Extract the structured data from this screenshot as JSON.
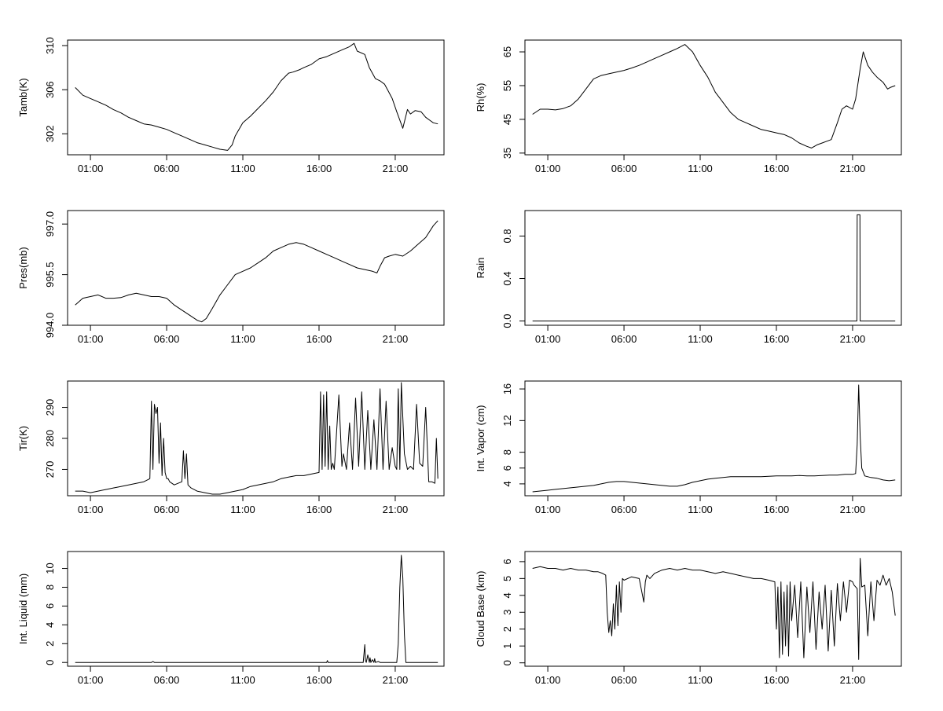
{
  "chart_data": [
    {
      "type": "line",
      "ylabel": "Tamb(K)",
      "xlabel": "",
      "x_ticks": [
        "01:00",
        "06:00",
        "11:00",
        "16:00",
        "21:00"
      ],
      "y_ticks": [
        302,
        306,
        310
      ],
      "xlim": [
        -0.5,
        24.2
      ],
      "ylim": [
        300.1,
        310.5
      ],
      "series": [
        {
          "x": [
            0,
            0.5,
            1,
            1.5,
            2,
            2.5,
            3,
            3.5,
            4,
            4.5,
            5,
            5.5,
            6,
            6.5,
            7,
            7.5,
            8,
            8.5,
            9,
            9.5,
            10,
            10.3,
            10.5,
            11,
            11.5,
            12,
            12.5,
            13,
            13.5,
            14,
            14.3,
            14.7,
            15,
            15.5,
            16,
            16.5,
            17,
            17.5,
            18,
            18.3,
            18.5,
            19,
            19.3,
            19.7,
            20,
            20.3,
            20.5,
            20.8,
            21.1,
            21.5,
            21.8,
            22,
            22.3,
            22.7,
            23,
            23.3,
            23.5,
            23.8
          ],
          "y": [
            306.2,
            305.5,
            305.2,
            304.9,
            304.6,
            304.2,
            303.9,
            303.5,
            303.2,
            302.9,
            302.8,
            302.6,
            302.4,
            302.1,
            301.8,
            301.5,
            301.2,
            301.0,
            300.8,
            300.6,
            300.5,
            301.0,
            301.8,
            303.0,
            303.6,
            304.3,
            305.0,
            305.8,
            306.8,
            307.5,
            307.6,
            307.8,
            308.0,
            308.3,
            308.8,
            309.0,
            309.3,
            309.6,
            309.9,
            310.2,
            309.5,
            309.2,
            308.0,
            307.0,
            306.8,
            306.5,
            306.0,
            305.2,
            304.0,
            302.5,
            304.2,
            303.8,
            304.1,
            304.0,
            303.5,
            303.2,
            303.0,
            302.9
          ]
        }
      ]
    },
    {
      "type": "line",
      "ylabel": "Rh(%)",
      "xlabel": "",
      "x_ticks": [
        "01:00",
        "06:00",
        "11:00",
        "16:00",
        "21:00"
      ],
      "y_ticks": [
        35,
        45,
        55,
        65
      ],
      "xlim": [
        -0.5,
        24.2
      ],
      "ylim": [
        34.5,
        68.5
      ],
      "series": [
        {
          "x": [
            0,
            0.5,
            1,
            1.5,
            2,
            2.5,
            3,
            3.5,
            4,
            4.5,
            5,
            5.5,
            6,
            6.5,
            7,
            7.5,
            8,
            8.5,
            9,
            9.5,
            10,
            10.5,
            11,
            11.5,
            12,
            12.5,
            13,
            13.5,
            14,
            14.5,
            15,
            15.5,
            16,
            16.5,
            17,
            17.5,
            18,
            18.3,
            18.7,
            19,
            19.3,
            19.6,
            20,
            20.3,
            20.6,
            21,
            21.2,
            21.5,
            21.7,
            22,
            22.3,
            22.6,
            23,
            23.3,
            23.5,
            23.8
          ],
          "y": [
            46.5,
            48,
            48,
            47.8,
            48.2,
            49,
            51,
            54,
            57,
            58,
            58.5,
            59,
            59.5,
            60.2,
            61,
            62,
            63,
            64,
            65,
            66,
            67.2,
            65,
            61,
            57.5,
            53,
            50,
            47,
            45,
            44,
            43,
            42,
            41.5,
            41,
            40.5,
            39.5,
            38,
            37,
            36.5,
            37.5,
            38,
            38.5,
            39,
            44,
            48,
            49,
            48,
            51,
            60,
            65,
            61,
            59,
            57.5,
            56,
            54,
            54.5,
            55
          ]
        }
      ]
    },
    {
      "type": "line",
      "ylabel": "Pres(mb)",
      "xlabel": "",
      "x_ticks": [
        "01:00",
        "06:00",
        "11:00",
        "16:00",
        "21:00"
      ],
      "y_ticks_values": [
        994.0,
        995.5,
        997.0
      ],
      "y_ticks": [
        "994.0",
        "995.5",
        "997.0"
      ],
      "xlim": [
        -0.5,
        24.2
      ],
      "ylim": [
        994.0,
        997.4
      ],
      "series": [
        {
          "x": [
            0,
            0.5,
            1,
            1.5,
            2,
            2.5,
            3,
            3.5,
            4,
            4.5,
            5,
            5.5,
            6,
            6.5,
            7,
            7.5,
            8,
            8.3,
            8.6,
            9,
            9.5,
            10,
            10.5,
            11,
            11.5,
            12,
            12.5,
            13,
            13.5,
            14,
            14.5,
            15,
            15.5,
            16,
            16.5,
            17,
            17.5,
            18,
            18.5,
            19,
            19.5,
            19.8,
            20,
            20.3,
            20.6,
            21,
            21.5,
            22,
            22.5,
            23,
            23.5,
            23.8
          ],
          "y": [
            994.6,
            994.8,
            994.85,
            994.9,
            994.8,
            994.8,
            994.82,
            994.9,
            994.95,
            994.9,
            994.85,
            994.85,
            994.8,
            994.6,
            994.45,
            994.3,
            994.15,
            994.1,
            994.2,
            994.5,
            994.9,
            995.2,
            995.5,
            995.6,
            995.7,
            995.85,
            996.0,
            996.2,
            996.3,
            996.4,
            996.45,
            996.4,
            996.3,
            996.2,
            996.1,
            996.0,
            995.9,
            995.8,
            995.7,
            995.65,
            995.6,
            995.55,
            995.75,
            996.0,
            996.05,
            996.1,
            996.05,
            996.2,
            996.4,
            996.6,
            996.95,
            997.1
          ]
        }
      ]
    },
    {
      "type": "line",
      "ylabel": "Rain",
      "xlabel": "",
      "x_ticks": [
        "01:00",
        "06:00",
        "11:00",
        "16:00",
        "21:00"
      ],
      "y_ticks": [
        "0.0",
        "0.4",
        "0.8"
      ],
      "y_ticks_values": [
        0.0,
        0.4,
        0.8
      ],
      "xlim": [
        -0.5,
        24.2
      ],
      "ylim": [
        -0.04,
        1.04
      ],
      "series": [
        {
          "x": [
            0,
            21.28,
            21.3,
            21.48,
            21.5,
            23.8
          ],
          "y": [
            0,
            0,
            1,
            1,
            0,
            0
          ]
        }
      ]
    },
    {
      "type": "line",
      "ylabel": "Tir(K)",
      "xlabel": "",
      "x_ticks": [
        "01:00",
        "06:00",
        "11:00",
        "16:00",
        "21:00"
      ],
      "y_ticks": [
        270,
        280,
        290
      ],
      "xlim": [
        -0.5,
        24.2
      ],
      "ylim": [
        261.5,
        298.5
      ],
      "series": [
        {
          "x": [
            0,
            0.5,
            1,
            1.5,
            2,
            2.5,
            3,
            3.5,
            4,
            4.5,
            4.9,
            5.0,
            5.1,
            5.2,
            5.3,
            5.4,
            5.5,
            5.6,
            5.7,
            5.8,
            5.9,
            6.0,
            6.1,
            6.2,
            6.5,
            7.0,
            7.1,
            7.2,
            7.3,
            7.4,
            7.6,
            8,
            8.5,
            9,
            9.5,
            10,
            10.5,
            11,
            11.5,
            12,
            12.5,
            13,
            13.5,
            14,
            14.5,
            15,
            15.5,
            16.0,
            16.1,
            16.2,
            16.3,
            16.4,
            16.5,
            16.6,
            16.7,
            16.8,
            16.9,
            17.0,
            17.3,
            17.5,
            17.6,
            17.8,
            18.0,
            18.2,
            18.4,
            18.6,
            18.8,
            19.0,
            19.2,
            19.4,
            19.6,
            19.8,
            20.0,
            20.2,
            20.4,
            20.6,
            20.8,
            21.0,
            21.1,
            21.2,
            21.3,
            21.4,
            21.6,
            21.8,
            22.0,
            22.2,
            22.4,
            22.6,
            22.8,
            23.0,
            23.2,
            23.4,
            23.6,
            23.7,
            23.8
          ],
          "y": [
            263,
            263,
            262.5,
            263,
            263.5,
            264,
            264.5,
            265,
            265.5,
            266,
            267,
            292,
            270,
            291,
            288,
            290,
            272,
            285,
            268,
            280,
            269,
            267,
            267,
            266,
            265,
            266,
            276,
            267,
            275,
            265,
            264,
            263,
            262.5,
            262,
            262,
            262.5,
            263,
            263.5,
            264.5,
            265,
            265.5,
            266,
            267,
            267.5,
            268,
            268,
            268.5,
            269,
            295,
            270,
            294,
            271,
            295,
            270,
            284,
            270,
            272,
            270,
            294,
            271,
            275,
            270,
            285,
            270,
            293,
            271,
            295,
            270,
            289,
            270,
            286,
            270,
            296,
            270,
            292,
            270,
            277,
            271,
            270,
            296,
            270,
            298,
            275,
            270,
            271,
            270,
            291,
            272,
            271,
            290,
            266,
            266,
            265.5,
            280,
            267
          ]
        }
      ]
    },
    {
      "type": "line",
      "ylabel": "Int. Vapor (cm)",
      "xlabel": "",
      "x_ticks": [
        "01:00",
        "06:00",
        "11:00",
        "16:00",
        "21:00"
      ],
      "y_ticks": [
        4,
        6,
        8,
        12,
        16
      ],
      "xlim": [
        -0.5,
        24.2
      ],
      "ylim": [
        2.5,
        17.0
      ],
      "series": [
        {
          "x": [
            0,
            0.5,
            1,
            1.5,
            2,
            2.5,
            3,
            3.5,
            4,
            4.5,
            5,
            5.5,
            6,
            6.5,
            7,
            7.5,
            8,
            8.5,
            9,
            9.5,
            10,
            10.5,
            11,
            11.5,
            12,
            12.5,
            13,
            13.5,
            14,
            14.5,
            15,
            15.5,
            16,
            16.5,
            17,
            17.5,
            18,
            18.5,
            19,
            19.5,
            20,
            20.5,
            21,
            21.2,
            21.3,
            21.4,
            21.5,
            21.6,
            21.8,
            22.2,
            22.6,
            23,
            23.4,
            23.8
          ],
          "y": [
            3.0,
            3.1,
            3.2,
            3.3,
            3.4,
            3.5,
            3.6,
            3.7,
            3.8,
            4.0,
            4.2,
            4.3,
            4.3,
            4.2,
            4.1,
            4.0,
            3.9,
            3.8,
            3.7,
            3.7,
            3.9,
            4.2,
            4.4,
            4.6,
            4.7,
            4.8,
            4.9,
            4.9,
            4.9,
            4.9,
            4.9,
            4.95,
            5.0,
            5.0,
            5.0,
            5.05,
            5.0,
            5.0,
            5.05,
            5.1,
            5.1,
            5.2,
            5.2,
            5.3,
            9,
            16.5,
            10,
            6,
            5.0,
            4.8,
            4.7,
            4.5,
            4.4,
            4.5
          ]
        }
      ]
    },
    {
      "type": "line",
      "ylabel": "Int. Liquid (mm)",
      "xlabel": "",
      "x_ticks": [
        "01:00",
        "06:00",
        "11:00",
        "16:00",
        "21:00"
      ],
      "y_ticks": [
        0,
        2,
        4,
        6,
        8,
        10
      ],
      "xlim": [
        -0.5,
        24.2
      ],
      "ylim": [
        -0.4,
        11.8
      ],
      "series": [
        {
          "x": [
            0,
            5.0,
            5.1,
            5.2,
            16.0,
            16.5,
            16.55,
            16.6,
            18.9,
            19.0,
            19.05,
            19.1,
            19.2,
            19.3,
            19.35,
            19.4,
            19.5,
            19.6,
            19.65,
            19.7,
            19.9,
            20.0,
            21.1,
            21.2,
            21.3,
            21.4,
            21.5,
            21.6,
            21.7,
            22.0,
            23.8
          ],
          "y": [
            0,
            0,
            0.1,
            0,
            0,
            0,
            0.2,
            0,
            0,
            1.9,
            0.2,
            0,
            0.8,
            0,
            0.5,
            0,
            0.3,
            0,
            0.4,
            0,
            0.1,
            0,
            0,
            2,
            8,
            11.4,
            9,
            3,
            0,
            0,
            0
          ]
        }
      ]
    },
    {
      "type": "line",
      "ylabel": "Cloud Base (km)",
      "xlabel": "",
      "x_ticks": [
        "01:00",
        "06:00",
        "11:00",
        "16:00",
        "21:00"
      ],
      "y_ticks": [
        0,
        1,
        2,
        3,
        4,
        5,
        6
      ],
      "xlim": [
        -0.5,
        24.2
      ],
      "ylim": [
        -0.2,
        6.6
      ],
      "series": [
        {
          "x": [
            0,
            0.5,
            1,
            1.5,
            2,
            2.5,
            3,
            3.5,
            4,
            4.3,
            4.6,
            4.8,
            4.9,
            5.0,
            5.1,
            5.2,
            5.3,
            5.4,
            5.5,
            5.6,
            5.7,
            5.8,
            5.9,
            6.0,
            6.5,
            7,
            7.3,
            7.4,
            7.5,
            7.7,
            8,
            8.5,
            9,
            9.5,
            10,
            10.5,
            11,
            11.5,
            12,
            12.5,
            13,
            13.5,
            14,
            14.5,
            15,
            15.5,
            15.9,
            16.0,
            16.1,
            16.2,
            16.3,
            16.4,
            16.5,
            16.6,
            16.7,
            16.8,
            16.9,
            17.0,
            17.2,
            17.4,
            17.6,
            17.8,
            18.0,
            18.2,
            18.4,
            18.6,
            18.8,
            19.0,
            19.2,
            19.4,
            19.6,
            19.8,
            20.0,
            20.2,
            20.4,
            20.6,
            20.8,
            21.0,
            21.1,
            21.3,
            21.4,
            21.5,
            21.6,
            21.8,
            22.0,
            22.2,
            22.4,
            22.6,
            22.8,
            23.0,
            23.2,
            23.4,
            23.6,
            23.8
          ],
          "y": [
            5.6,
            5.7,
            5.6,
            5.6,
            5.5,
            5.6,
            5.5,
            5.5,
            5.4,
            5.4,
            5.3,
            5.2,
            3.0,
            1.8,
            2.5,
            1.6,
            3.5,
            2.0,
            4.6,
            2.2,
            4.8,
            3.0,
            5.0,
            4.9,
            5.1,
            5.0,
            3.6,
            4.8,
            5.2,
            5.0,
            5.3,
            5.5,
            5.6,
            5.5,
            5.6,
            5.5,
            5.5,
            5.4,
            5.3,
            5.4,
            5.3,
            5.2,
            5.1,
            5.0,
            5.0,
            4.9,
            4.8,
            2.0,
            4.5,
            0.3,
            4.8,
            0.5,
            4.2,
            1.0,
            4.6,
            0.4,
            4.8,
            2.5,
            4.6,
            1.5,
            4.8,
            0.3,
            4.5,
            1.8,
            4.8,
            0.8,
            4.2,
            2.0,
            4.6,
            0.7,
            4.3,
            1.0,
            4.7,
            2.5,
            4.8,
            3.0,
            4.9,
            4.8,
            4.6,
            4.4,
            0.2,
            6.2,
            4.5,
            4.6,
            1.6,
            4.8,
            2.5,
            4.9,
            4.6,
            5.2,
            4.6,
            5.0,
            4.2,
            2.8
          ]
        }
      ]
    }
  ]
}
